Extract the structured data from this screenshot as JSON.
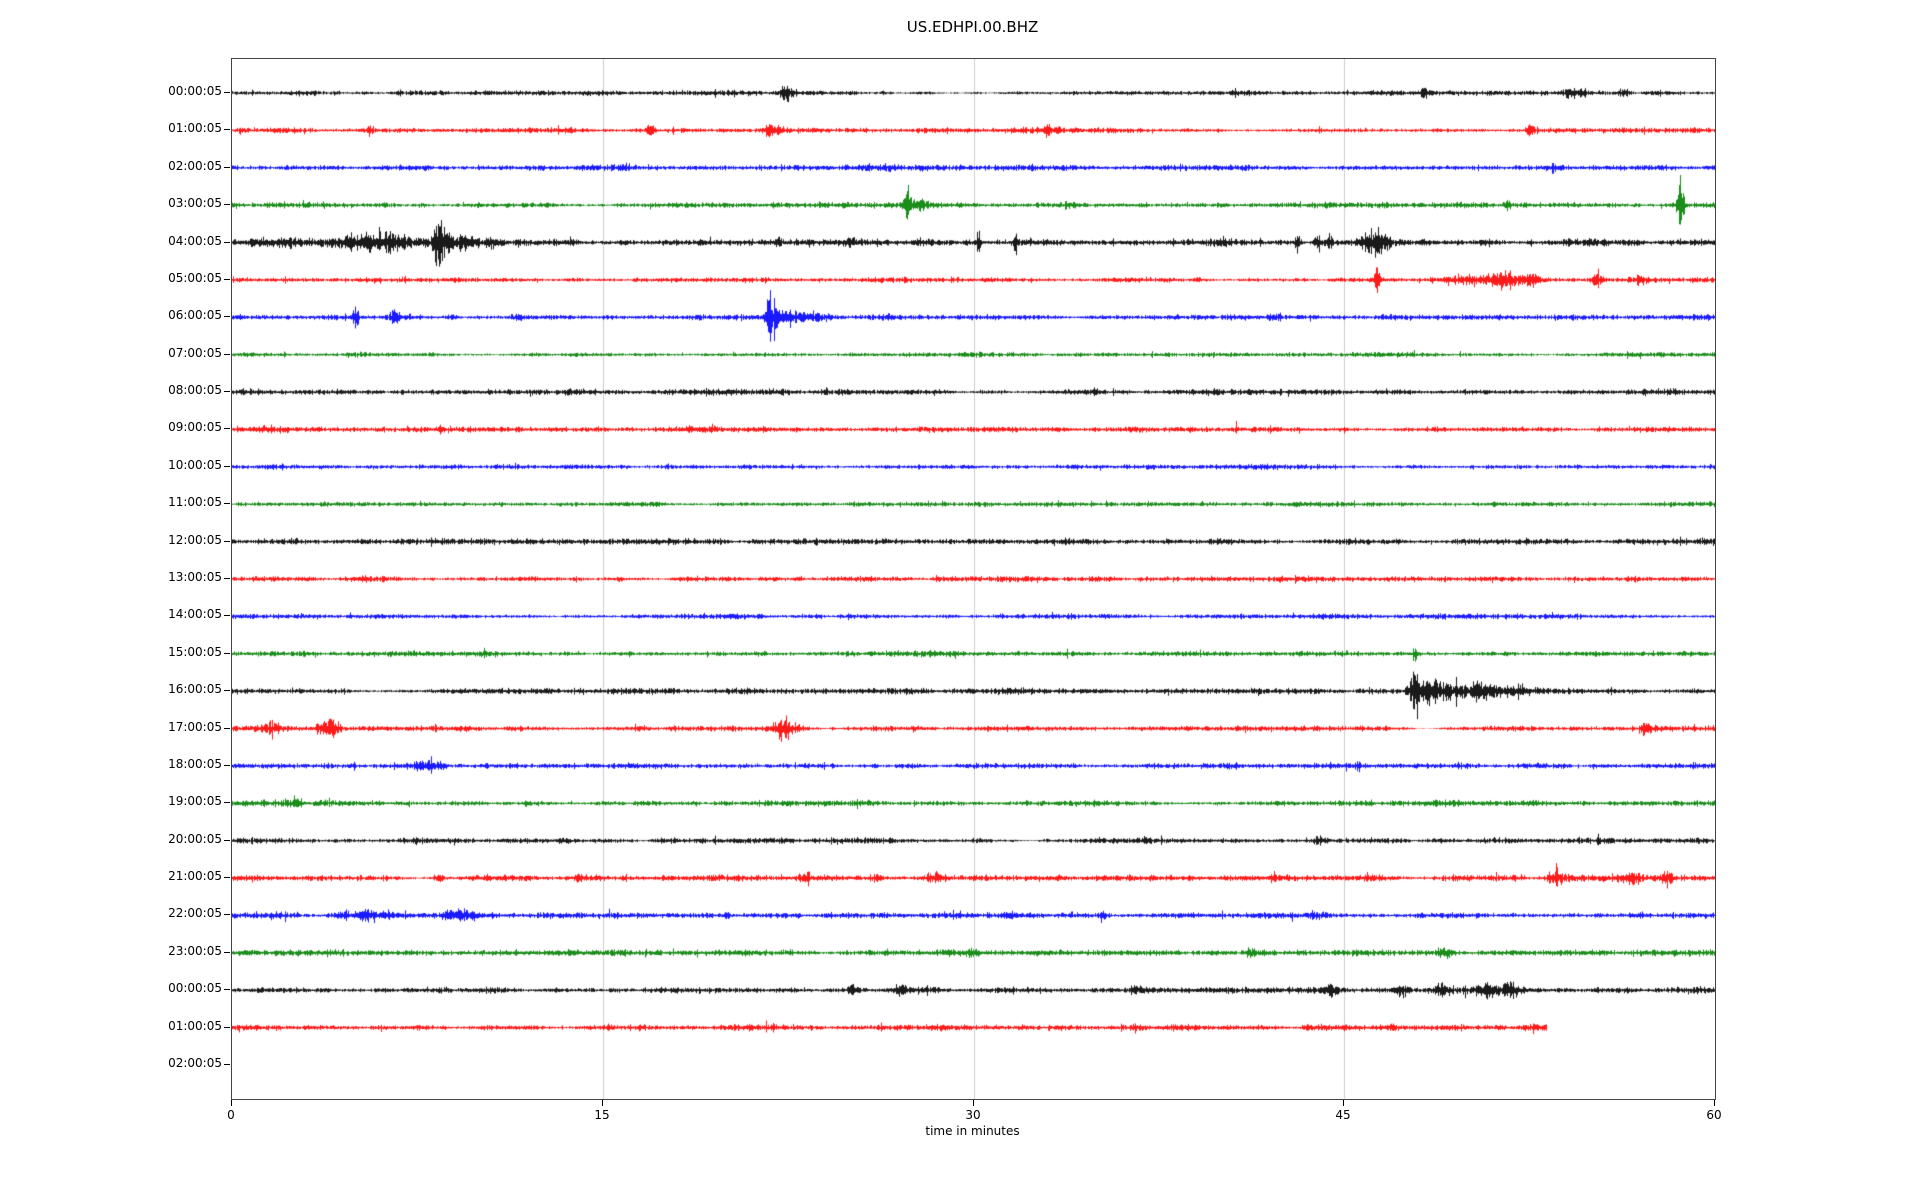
{
  "chart_data": {
    "type": "line",
    "subtype": "seismogram-helicorder",
    "title": "US.EDHPI.00.BHZ",
    "xlabel": "time in minutes",
    "x_range": [
      0,
      60
    ],
    "x_ticks": [
      0,
      15,
      30,
      45,
      60
    ],
    "x_gridlines": [
      15,
      30,
      45
    ],
    "grid": "vertical-only",
    "legend": "none",
    "trace_color_cycle": [
      "#000000",
      "#ff0000",
      "#0000ff",
      "#008000"
    ],
    "gridline_color": "#cccccc",
    "spine_color": "#444444",
    "events_format": "[minute, amplitude_px, sigma_minutes]",
    "rows": [
      {
        "label": "00:00:05",
        "color": "#000000",
        "noise": 2.0,
        "end": 60,
        "events": [
          [
            22.4,
            6,
            0.2
          ],
          [
            48.2,
            4,
            0.08
          ],
          [
            54.3,
            4,
            0.25
          ],
          [
            56.3,
            4,
            0.2
          ],
          [
            57.6,
            3,
            0.15
          ]
        ]
      },
      {
        "label": "01:00:05",
        "color": "#ff0000",
        "noise": 2.0,
        "end": 60,
        "events": [
          [
            5.6,
            5,
            0.12
          ],
          [
            16.9,
            4,
            0.15
          ],
          [
            21.9,
            6,
            0.25
          ],
          [
            33.0,
            2,
            0.3
          ],
          [
            52.5,
            4,
            0.12
          ]
        ]
      },
      {
        "label": "02:00:05",
        "color": "#0000ff",
        "noise": 2.4,
        "end": 60,
        "events": []
      },
      {
        "label": "03:00:05",
        "color": "#008000",
        "noise": 2.2,
        "end": 60,
        "events": [
          [
            27.3,
            10,
            0.08
          ],
          [
            27.6,
            4,
            0.35
          ],
          [
            34.0,
            4,
            0.35
          ],
          [
            51.6,
            6,
            0.1
          ],
          [
            58.6,
            20,
            0.1
          ]
        ]
      },
      {
        "label": "04:00:05",
        "color": "#000000",
        "noise": 2.6,
        "end": 60,
        "events": [
          [
            3.0,
            2,
            1.5
          ],
          [
            5.3,
            6,
            0.6
          ],
          [
            6.5,
            5,
            0.5
          ],
          [
            8.35,
            27,
            0.12
          ],
          [
            8.8,
            8,
            0.5
          ],
          [
            10.0,
            4,
            0.6
          ],
          [
            22.1,
            8,
            0.07
          ],
          [
            25.0,
            3,
            0.3
          ],
          [
            28.0,
            3,
            0.2
          ],
          [
            30.2,
            11,
            0.06
          ],
          [
            31.7,
            8,
            0.06
          ],
          [
            40.0,
            3,
            0.3
          ],
          [
            43.1,
            13,
            0.07
          ],
          [
            43.9,
            10,
            0.1
          ],
          [
            44.4,
            9,
            0.08
          ],
          [
            46.1,
            8,
            0.3
          ],
          [
            46.6,
            6,
            0.2
          ]
        ]
      },
      {
        "label": "05:00:05",
        "color": "#ff0000",
        "noise": 2.0,
        "end": 60,
        "events": [
          [
            46.3,
            10,
            0.08
          ],
          [
            49.5,
            3,
            0.6
          ],
          [
            51.5,
            4,
            0.4
          ],
          [
            52.5,
            5,
            0.3
          ],
          [
            55.2,
            6,
            0.15
          ],
          [
            57.0,
            3,
            0.3
          ]
        ]
      },
      {
        "label": "06:00:05",
        "color": "#0000ff",
        "noise": 2.0,
        "end": 60,
        "events": [
          [
            5.0,
            8,
            0.08
          ],
          [
            6.6,
            5,
            0.15
          ],
          [
            7.3,
            4,
            0.2
          ],
          [
            8.2,
            4,
            0.2
          ],
          [
            8.9,
            4,
            0.15
          ],
          [
            11.5,
            3,
            0.2
          ],
          [
            21.8,
            14,
            0.15
          ],
          [
            22.3,
            6,
            0.4
          ],
          [
            23.5,
            3,
            0.5
          ]
        ]
      },
      {
        "label": "07:00:05",
        "color": "#008000",
        "noise": 1.8,
        "end": 60,
        "events": []
      },
      {
        "label": "08:00:05",
        "color": "#000000",
        "noise": 2.4,
        "end": 60,
        "events": []
      },
      {
        "label": "09:00:05",
        "color": "#ff0000",
        "noise": 2.2,
        "end": 60,
        "events": [
          [
            40.6,
            4,
            0.08
          ]
        ]
      },
      {
        "label": "10:00:05",
        "color": "#0000ff",
        "noise": 1.9,
        "end": 60,
        "events": []
      },
      {
        "label": "11:00:05",
        "color": "#008000",
        "noise": 1.9,
        "end": 60,
        "events": []
      },
      {
        "label": "12:00:05",
        "color": "#000000",
        "noise": 2.4,
        "end": 60,
        "events": []
      },
      {
        "label": "13:00:05",
        "color": "#ff0000",
        "noise": 2.2,
        "end": 60,
        "events": []
      },
      {
        "label": "14:00:05",
        "color": "#0000ff",
        "noise": 2.1,
        "end": 60,
        "events": []
      },
      {
        "label": "15:00:05",
        "color": "#008000",
        "noise": 2.1,
        "end": 60,
        "events": [
          [
            47.85,
            9,
            0.05
          ]
        ]
      },
      {
        "label": "16:00:05",
        "color": "#000000",
        "noise": 2.4,
        "end": 60,
        "events": [
          [
            47.85,
            34,
            0.12
          ],
          [
            48.3,
            10,
            0.4
          ],
          [
            49.3,
            7,
            0.5
          ],
          [
            50.5,
            5,
            0.6
          ],
          [
            52.0,
            4,
            0.5
          ]
        ]
      },
      {
        "label": "17:00:05",
        "color": "#ff0000",
        "noise": 2.3,
        "end": 60,
        "events": [
          [
            1.6,
            4,
            0.4
          ],
          [
            3.8,
            6,
            0.25
          ],
          [
            4.2,
            4,
            0.2
          ],
          [
            22.2,
            7,
            0.25
          ],
          [
            22.6,
            4,
            0.3
          ],
          [
            57.2,
            4,
            0.15
          ]
        ]
      },
      {
        "label": "18:00:05",
        "color": "#0000ff",
        "noise": 2.3,
        "end": 60,
        "events": [
          [
            4.85,
            6,
            0.07
          ],
          [
            8.0,
            3,
            0.4
          ]
        ]
      },
      {
        "label": "19:00:05",
        "color": "#008000",
        "noise": 2.3,
        "end": 60,
        "events": [
          [
            2.6,
            5,
            0.12
          ]
        ]
      },
      {
        "label": "20:00:05",
        "color": "#000000",
        "noise": 2.4,
        "end": 60,
        "events": [
          [
            30.1,
            4,
            0.15
          ],
          [
            37.0,
            3,
            0.2
          ],
          [
            44.0,
            3,
            0.2
          ]
        ]
      },
      {
        "label": "21:00:05",
        "color": "#ff0000",
        "noise": 2.5,
        "end": 60,
        "events": [
          [
            8.3,
            4,
            0.15
          ],
          [
            14.0,
            3,
            0.2
          ],
          [
            23.2,
            4,
            0.15
          ],
          [
            26.0,
            4,
            0.2
          ],
          [
            28.5,
            3,
            0.2
          ],
          [
            53.6,
            5,
            0.25
          ],
          [
            56.6,
            5,
            0.3
          ],
          [
            58.0,
            4,
            0.2
          ]
        ]
      },
      {
        "label": "22:00:05",
        "color": "#0000ff",
        "noise": 2.5,
        "end": 60,
        "events": [
          [
            5.5,
            4,
            0.8
          ],
          [
            9.2,
            4,
            0.4
          ],
          [
            35.2,
            4,
            0.1
          ],
          [
            44.0,
            3,
            0.3
          ]
        ]
      },
      {
        "label": "23:00:05",
        "color": "#008000",
        "noise": 2.4,
        "end": 60,
        "events": [
          [
            30.0,
            3,
            0.2
          ],
          [
            41.2,
            4,
            0.15
          ],
          [
            49.0,
            4,
            0.2
          ]
        ]
      },
      {
        "label": "00:00:05",
        "color": "#000000",
        "noise": 2.3,
        "end": 60,
        "events": [
          [
            25.2,
            4,
            0.2
          ],
          [
            27.0,
            4,
            0.15
          ],
          [
            36.6,
            4,
            0.2
          ],
          [
            44.5,
            3,
            0.2
          ],
          [
            47.2,
            4,
            0.25
          ],
          [
            49.0,
            5,
            0.25
          ],
          [
            50.7,
            6,
            0.4
          ],
          [
            51.7,
            5,
            0.25
          ]
        ]
      },
      {
        "label": "01:00:05",
        "color": "#ff0000",
        "noise": 2.5,
        "end": 53.2,
        "events": []
      },
      {
        "label": "02:00:05",
        "color": "#0000ff",
        "noise": 0,
        "end": 0,
        "events": []
      }
    ]
  },
  "layout_constants": {
    "note": "helicorder: one trace per hour, colors cycle black/red/blue/green, last labelled hour has no trace"
  }
}
